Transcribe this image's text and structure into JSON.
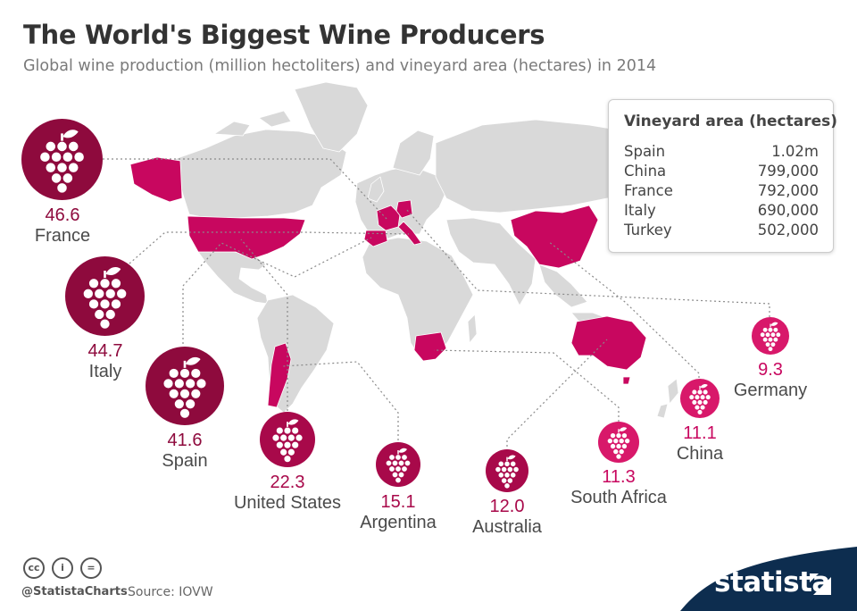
{
  "title": "The World's Biggest Wine Producers",
  "subtitle": "Global wine production (million hectoliters) and vineyard area (hectares) in 2014",
  "colors": {
    "land": "#d9d9d9",
    "highlight": "#c8075f",
    "badge_dark": "#8e0a3d",
    "badge_mid": "#a8094a",
    "badge_light": "#d8186a",
    "brand": "#0d2d4f"
  },
  "chart_data": {
    "type": "map",
    "series": [
      {
        "country": "France",
        "value": 46.6,
        "label": "46.6"
      },
      {
        "country": "Italy",
        "value": 44.7,
        "label": "44.7"
      },
      {
        "country": "Spain",
        "value": 41.6,
        "label": "41.6"
      },
      {
        "country": "United States",
        "value": 22.3,
        "label": "22.3"
      },
      {
        "country": "Argentina",
        "value": 15.1,
        "label": "15.1"
      },
      {
        "country": "Australia",
        "value": 12.0,
        "label": "12.0"
      },
      {
        "country": "South Africa",
        "value": 11.3,
        "label": "11.3"
      },
      {
        "country": "China",
        "value": 11.1,
        "label": "11.1"
      },
      {
        "country": "Germany",
        "value": 9.3,
        "label": "9.3"
      }
    ]
  },
  "vineyard_area": {
    "title": "Vineyard area (hectares)",
    "rows": [
      {
        "country": "Spain",
        "value": "1.02m"
      },
      {
        "country": "China",
        "value": "799,000"
      },
      {
        "country": "France",
        "value": "792,000"
      },
      {
        "country": "Italy",
        "value": "690,000"
      },
      {
        "country": "Turkey",
        "value": "502,000"
      }
    ]
  },
  "footer": {
    "icons": [
      "cc-icon",
      "attribution-icon",
      "no-derivatives-icon"
    ],
    "icon_glyphs": [
      "cc",
      "i",
      "="
    ],
    "handle": "@StatistaCharts",
    "source": "Source: IOVW",
    "brand": "statista"
  }
}
